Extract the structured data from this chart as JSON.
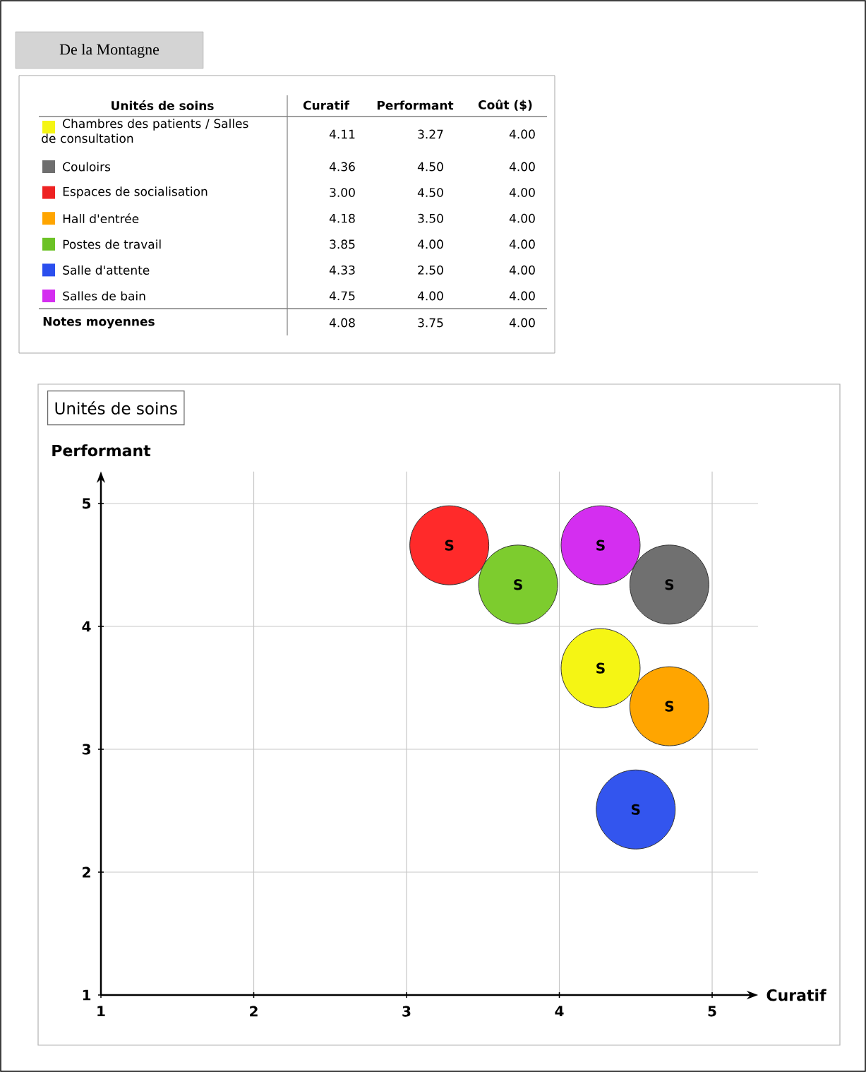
{
  "chart_data": [
    {
      "type": "other",
      "title": "De la Montagne",
      "colors": [
        "#f5f514",
        "#6e6e6e",
        "#ee2222",
        "#ffa500",
        "#6cc226",
        "#2b4fee",
        "#d42ef0"
      ],
      "annotations": [
        "Unités de soins",
        "Curatif",
        "Performant",
        "Coût ($)",
        "Chambres des patients / Salles de consultation",
        "4.11",
        "3.27",
        "4.00",
        "Couloirs",
        "4.36",
        "4.50",
        "4.00",
        "Espaces de socialisation",
        "3.00",
        "4.50",
        "4.00",
        "Hall d'entrée",
        "4.18",
        "3.50",
        "4.00",
        "Postes de travail",
        "3.85",
        "4.00",
        "4.00",
        "Salle d'attente",
        "4.33",
        "2.50",
        "4.00",
        "Salles de bain",
        "4.75",
        "4.00",
        "4.00",
        "Notes moyennes",
        "4.08",
        "3.75",
        "4.00"
      ]
    },
    {
      "type": "bubble",
      "legend_title": "Unités de soins",
      "xlabel": "Curatif",
      "ylabel": "Performant",
      "xlim": [
        1,
        5.3
      ],
      "ylim": [
        1,
        5.26
      ],
      "xticks": [
        1,
        2,
        3,
        4,
        5
      ],
      "yticks": [
        1,
        2,
        3,
        4,
        5
      ],
      "grid": true,
      "series": [
        {
          "color": "#ff2a2a",
          "x": [
            3.28
          ],
          "values": [
            4.66
          ],
          "sizes": [
            1
          ],
          "value_labels": [
            "S"
          ]
        },
        {
          "color": "#7dcc2e",
          "x": [
            3.73
          ],
          "values": [
            4.34
          ],
          "sizes": [
            1
          ],
          "value_labels": [
            "S"
          ]
        },
        {
          "color": "#d42ef0",
          "x": [
            4.27
          ],
          "values": [
            4.66
          ],
          "sizes": [
            1
          ],
          "value_labels": [
            "S"
          ]
        },
        {
          "color": "#707070",
          "x": [
            4.72
          ],
          "values": [
            4.34
          ],
          "sizes": [
            1
          ],
          "value_labels": [
            "S"
          ]
        },
        {
          "color": "#f5f514",
          "x": [
            4.27
          ],
          "values": [
            3.66
          ],
          "sizes": [
            1
          ],
          "value_labels": [
            "S"
          ]
        },
        {
          "color": "#ffa500",
          "x": [
            4.72
          ],
          "values": [
            3.35
          ],
          "sizes": [
            1
          ],
          "value_labels": [
            "S"
          ]
        },
        {
          "color": "#3355ee",
          "x": [
            4.5
          ],
          "values": [
            2.51
          ],
          "sizes": [
            1
          ],
          "value_labels": [
            "S"
          ]
        }
      ]
    }
  ]
}
